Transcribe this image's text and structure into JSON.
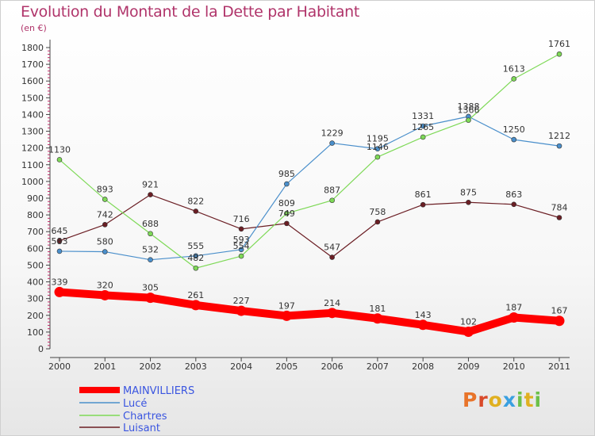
{
  "header": {
    "title": "Evolution du Montant de la Dette par Habitant",
    "subtitle": "(en €)"
  },
  "logo": {
    "text": "Proxiti"
  },
  "chart_data": {
    "type": "line",
    "title": "Evolution du Montant de la Dette par Habitant",
    "subtitle": "(en €)",
    "x": [
      "2000",
      "2001",
      "2002",
      "2003",
      "2004",
      "2005",
      "2006",
      "2007",
      "2008",
      "2009",
      "2010",
      "2011"
    ],
    "ylim": [
      0,
      1800
    ],
    "yticks": [
      0,
      100,
      200,
      300,
      400,
      500,
      600,
      700,
      800,
      900,
      1000,
      1100,
      1200,
      1300,
      1400,
      1500,
      1600,
      1700,
      1800
    ],
    "grid": false,
    "legend": "bottom-left",
    "series": [
      {
        "name": "MAINVILLIERS",
        "color": "#ff0000",
        "values": [
          339,
          320,
          305,
          261,
          227,
          197,
          214,
          181,
          143,
          102,
          187,
          167
        ]
      },
      {
        "name": "Lucé",
        "color": "#4a8fcb",
        "values": [
          583,
          580,
          532,
          555,
          593,
          985,
          1229,
          1195,
          1331,
          1388,
          1250,
          1212
        ]
      },
      {
        "name": "Chartres",
        "color": "#7ed957",
        "values": [
          1130,
          893,
          688,
          482,
          554,
          809,
          887,
          1146,
          1265,
          1366,
          1613,
          1761
        ]
      },
      {
        "name": "Luisant",
        "color": "#6b1e24",
        "values": [
          645,
          742,
          921,
          822,
          716,
          749,
          547,
          758,
          861,
          875,
          863,
          784
        ]
      }
    ]
  }
}
